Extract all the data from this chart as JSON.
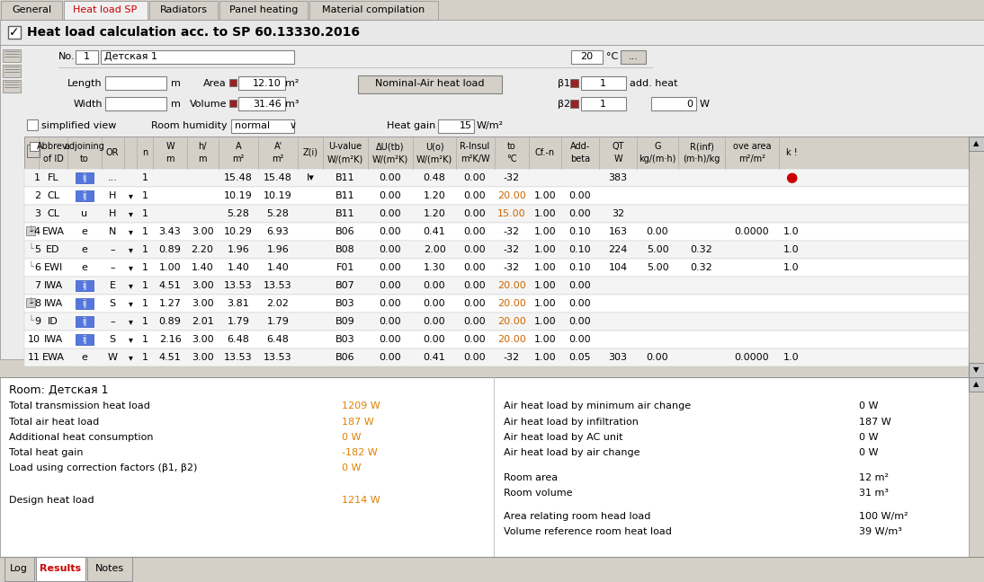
{
  "tabs": [
    "General",
    "Heat load SP",
    "Radiators",
    "Panel heating",
    "Material compilation"
  ],
  "active_tab": "Heat load SP",
  "title": "Heat load calculation acc. to SP 60.13330.2016",
  "room_name": "Детская 1",
  "room_number": "1",
  "temp": "20",
  "area": "12.10",
  "volume": "31.46",
  "heat_gain": "15",
  "beta1": "1",
  "beta2": "1",
  "add_heat_value": "0",
  "room_humidity": "normal",
  "table_rows": [
    [
      "1",
      "FL",
      "ij",
      "...",
      "",
      "1",
      "",
      "",
      "15.48",
      "15.48",
      "I▾",
      "B11",
      "0.00",
      "0.48",
      "0.00",
      "-32",
      "",
      "",
      "383",
      "",
      "",
      "",
      "●"
    ],
    [
      "2",
      "CL",
      "ij",
      "H",
      "▾",
      "1",
      "",
      "",
      "10.19",
      "10.19",
      "",
      "B11",
      "0.00",
      "1.20",
      "0.00",
      "20.00",
      "1.00",
      "0.00",
      "",
      "",
      "",
      "",
      ""
    ],
    [
      "3",
      "CL",
      "u",
      "H",
      "▾",
      "1",
      "",
      "",
      "5.28",
      "5.28",
      "",
      "B11",
      "0.00",
      "1.20",
      "0.00",
      "15.00",
      "1.00",
      "0.00",
      "32",
      "",
      "",
      "",
      ""
    ],
    [
      "4",
      "EWA",
      "e",
      "N",
      "▾",
      "1",
      "3.43",
      "3.00",
      "10.29",
      "6.93",
      "",
      "B06",
      "0.00",
      "0.41",
      "0.00",
      "-32",
      "1.00",
      "0.10",
      "163",
      "0.00",
      "",
      "0.0000",
      "1.0"
    ],
    [
      "5",
      "ED",
      "e",
      "–",
      "▾",
      "1",
      "0.89",
      "2.20",
      "1.96",
      "1.96",
      "",
      "B08",
      "0.00",
      "2.00",
      "0.00",
      "-32",
      "1.00",
      "0.10",
      "224",
      "5.00",
      "0.32",
      "",
      "1.0"
    ],
    [
      "6",
      "EWI",
      "e",
      "–",
      "▾",
      "1",
      "1.00",
      "1.40",
      "1.40",
      "1.40",
      "",
      "F01",
      "0.00",
      "1.30",
      "0.00",
      "-32",
      "1.00",
      "0.10",
      "104",
      "5.00",
      "0.32",
      "",
      "1.0"
    ],
    [
      "7",
      "IWA",
      "ij",
      "E",
      "▾",
      "1",
      "4.51",
      "3.00",
      "13.53",
      "13.53",
      "",
      "B07",
      "0.00",
      "0.00",
      "0.00",
      "20.00",
      "1.00",
      "0.00",
      "",
      "",
      "",
      "",
      ""
    ],
    [
      "8",
      "IWA",
      "ij",
      "S",
      "▾",
      "1",
      "1.27",
      "3.00",
      "3.81",
      "2.02",
      "",
      "B03",
      "0.00",
      "0.00",
      "0.00",
      "20.00",
      "1.00",
      "0.00",
      "",
      "",
      "",
      "",
      ""
    ],
    [
      "9",
      "ID",
      "ij",
      "–",
      "▾",
      "1",
      "0.89",
      "2.01",
      "1.79",
      "1.79",
      "",
      "B09",
      "0.00",
      "0.00",
      "0.00",
      "20.00",
      "1.00",
      "0.00",
      "",
      "",
      "",
      "",
      ""
    ],
    [
      "10",
      "IWA",
      "ij",
      "S",
      "▾",
      "1",
      "2.16",
      "3.00",
      "6.48",
      "6.48",
      "",
      "B03",
      "0.00",
      "0.00",
      "0.00",
      "20.00",
      "1.00",
      "0.00",
      "",
      "",
      "",
      "",
      ""
    ],
    [
      "11",
      "EWA",
      "e",
      "W",
      "▾",
      "1",
      "4.51",
      "3.00",
      "13.53",
      "13.53",
      "",
      "B06",
      "0.00",
      "0.41",
      "0.00",
      "-32",
      "1.00",
      "0.05",
      "303",
      "0.00",
      "",
      "0.0000",
      "1.0"
    ]
  ],
  "row_indent": [
    false,
    false,
    false,
    true,
    true,
    true,
    false,
    true,
    true,
    false,
    false
  ],
  "row_group_mark": [
    false,
    false,
    false,
    true,
    false,
    false,
    false,
    true,
    false,
    false,
    false
  ],
  "results_room_label": "Room: Детская 1",
  "left_labels": [
    "Total transmission heat load",
    "Total air heat load",
    "Additional heat consumption",
    "Total heat gain",
    "Load using correction factors (β1, β2)"
  ],
  "left_values": [
    "1209 W",
    "187 W",
    "0 W",
    "-182 W",
    "0 W"
  ],
  "design_label": "Design heat load",
  "design_value": "1214 W",
  "right_labels": [
    "Air heat load by minimum air change",
    "Air heat load by infiltration",
    "Air heat load by AC unit",
    "Air heat load by air change"
  ],
  "right_values": [
    "0 W",
    "187 W",
    "0 W",
    "0 W"
  ],
  "area_label": "Room area",
  "area_value": "12 m²",
  "volume_label": "Room volume",
  "volume_value": "31 m³",
  "density_label1": "Area relating room head load",
  "density_value1": "100 W/m²",
  "density_label2": "Volume reference room heat load",
  "density_value2": "39 W/m³",
  "bottom_tabs": [
    "Log",
    "Results",
    "Notes"
  ],
  "active_bottom_tab": "Results",
  "bg_color": "#d4d0c8",
  "tab_active_color": "#f0f0f0",
  "tab_inactive_color": "#d4d0c8",
  "panel_bg": "#ececec",
  "white": "#ffffff",
  "orange": "#e08000",
  "red_dot": "#cc0000",
  "blue_box": "#4466cc",
  "warm_orange": "#cc6600"
}
